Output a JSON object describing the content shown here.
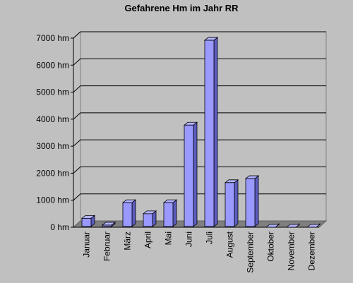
{
  "chart_data": {
    "type": "bar",
    "title": "Gefahrene Hm im Jahr RR",
    "categories": [
      "Januar",
      "Februar",
      "März",
      "April",
      "Mai",
      "Juni",
      "Juli",
      "August",
      "September",
      "Oktober",
      "November",
      "Dezember"
    ],
    "values": [
      330,
      80,
      910,
      500,
      910,
      3780,
      6920,
      1650,
      1800,
      0,
      0,
      0
    ],
    "ylim": [
      0,
      7000
    ],
    "yticks": [
      0,
      1000,
      2000,
      3000,
      4000,
      5000,
      6000,
      7000
    ],
    "ytick_suffix": " hm",
    "grid": true,
    "legend": "none",
    "colors": {
      "background": "#c0c0c0",
      "bar_front": "#9999ff",
      "bar_top": "#b3b3ff",
      "bar_side": "#5c5cc0",
      "floor": "#808080",
      "grid": "#000000"
    }
  }
}
